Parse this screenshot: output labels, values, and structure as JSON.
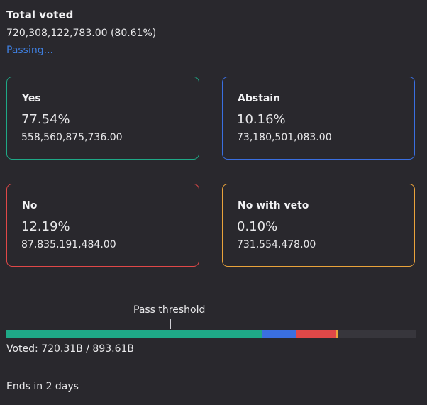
{
  "summary": {
    "total_label": "Total voted",
    "total_value": "720,308,122,783.00 (80.61%)",
    "status": "Passing..."
  },
  "cards": {
    "yes": {
      "label": "Yes",
      "percent": "77.54%",
      "amount": "558,560,875,736.00",
      "color": "#1fa987"
    },
    "abstain": {
      "label": "Abstain",
      "percent": "10.16%",
      "amount": "73,180,501,083.00",
      "color": "#3a6fe0"
    },
    "no": {
      "label": "No",
      "percent": "12.19%",
      "amount": "87,835,191,484.00",
      "color": "#e04848"
    },
    "veto": {
      "label": "No with veto",
      "percent": "0.10%",
      "amount": "731,554,478.00",
      "color": "#e9a33b"
    }
  },
  "progress": {
    "threshold_label": "Pass threshold",
    "threshold_fraction": 0.4,
    "total_votable": 893.61,
    "segments": [
      {
        "name": "yes",
        "value": 558.56,
        "color": "#1fa987"
      },
      {
        "name": "abstain",
        "value": 73.18,
        "color": "#3a6fe0"
      },
      {
        "name": "no",
        "value": 87.84,
        "color": "#e04848"
      },
      {
        "name": "veto",
        "value": 0.73,
        "color": "#e9a33b"
      }
    ],
    "voted_text": "Voted: 720.31B / 893.61B"
  },
  "footer": {
    "ends_text": "Ends in 2 days"
  }
}
